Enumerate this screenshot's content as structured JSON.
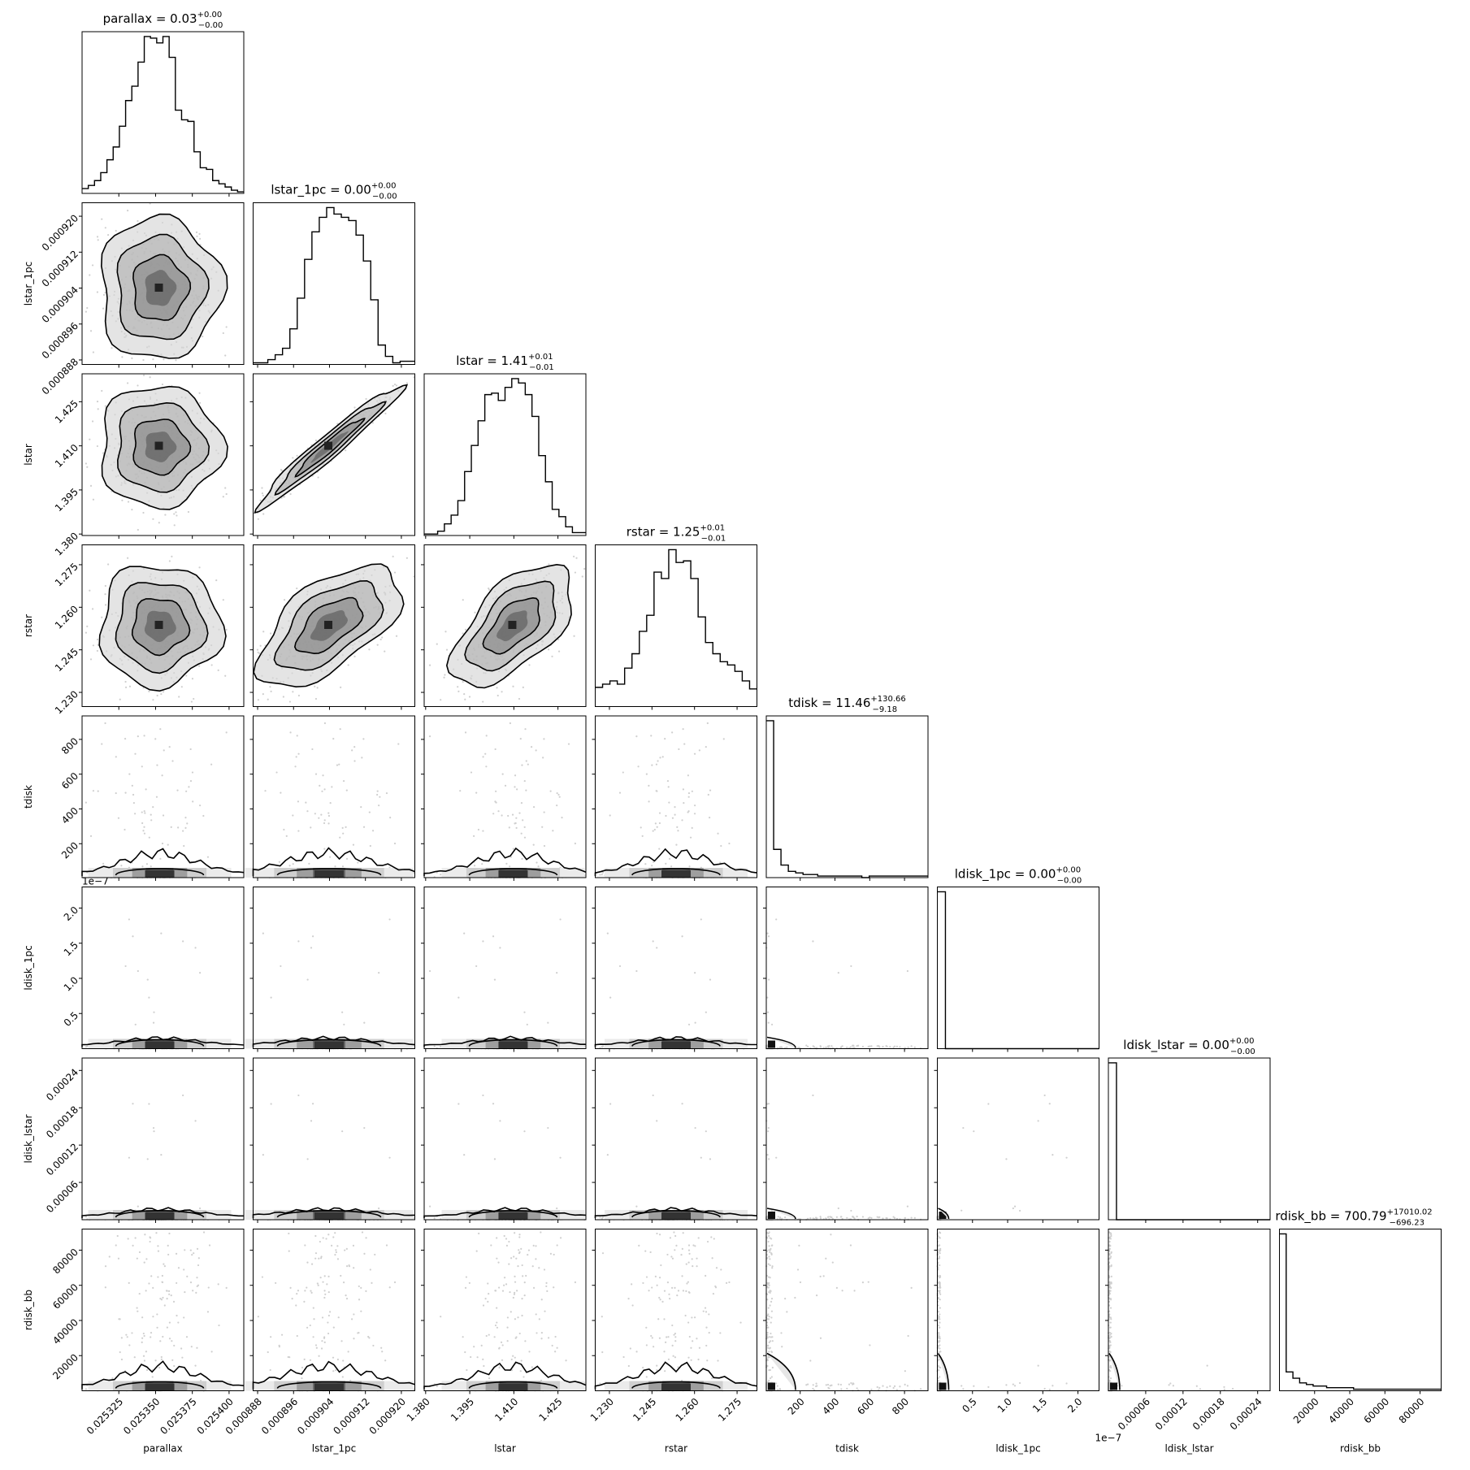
{
  "chart_data": {
    "type": "corner",
    "parameters": [
      "parallax",
      "lstar_1pc",
      "lstar",
      "rstar",
      "tdisk",
      "ldisk_1pc",
      "ldisk_lstar",
      "rdisk_bb"
    ],
    "xlabels": [
      "parallax",
      "lstar_1pc",
      "lstar",
      "rstar",
      "tdisk",
      "ldisk_1pc",
      "ldisk_lstar",
      "rdisk_bb"
    ],
    "ylabels": [
      "lstar_1pc",
      "lstar",
      "rstar",
      "tdisk",
      "ldisk_1pc",
      "ldisk_lstar",
      "rdisk_bb"
    ],
    "titles": [
      {
        "param": "parallax",
        "text": "parallax = 0.03",
        "sup": "+0.00",
        "sub": "−0.00"
      },
      {
        "param": "lstar_1pc",
        "text": "lstar_1pc = 0.00",
        "sup": "+0.00",
        "sub": "−0.00"
      },
      {
        "param": "lstar",
        "text": "lstar = 1.41",
        "sup": "+0.01",
        "sub": "−0.01"
      },
      {
        "param": "rstar",
        "text": "rstar = 1.25",
        "sup": "+0.01",
        "sub": "−0.01"
      },
      {
        "param": "tdisk",
        "text": "tdisk = 11.46",
        "sup": "+130.66",
        "sub": "−9.18"
      },
      {
        "param": "ldisk_1pc",
        "text": "ldisk_1pc = 0.00",
        "sup": "+0.00",
        "sub": "−0.00"
      },
      {
        "param": "ldisk_lstar",
        "text": "ldisk_lstar = 0.00",
        "sup": "+0.00",
        "sub": "−0.00"
      },
      {
        "param": "rdisk_bb",
        "text": "rdisk_bb = 700.79",
        "sup": "+17010.02",
        "sub": "−696.23"
      }
    ],
    "axes": {
      "parallax": {
        "range": [
          0.0253,
          0.02541
        ],
        "ticks": [
          "0.025325",
          "0.025350",
          "0.025375",
          "0.025400"
        ],
        "tick_values": [
          0.025325,
          0.02535,
          0.025375,
          0.0254
        ]
      },
      "lstar_1pc": {
        "range": [
          0.000887,
          0.000923
        ],
        "ticks": [
          "0.000888",
          "0.000896",
          "0.000904",
          "0.000912",
          "0.000920"
        ],
        "tick_values": [
          0.000888,
          0.000896,
          0.000904,
          0.000912,
          0.00092
        ]
      },
      "lstar": {
        "range": [
          1.3795,
          1.4345
        ],
        "ticks": [
          "1.380",
          "1.395",
          "1.410",
          "1.425"
        ],
        "tick_values": [
          1.38,
          1.395,
          1.41,
          1.425
        ]
      },
      "rstar": {
        "range": [
          1.225,
          1.282
        ],
        "ticks": [
          "1.230",
          "1.245",
          "1.260",
          "1.275"
        ],
        "tick_values": [
          1.23,
          1.245,
          1.26,
          1.275
        ]
      },
      "tdisk": {
        "range": [
          5,
          935
        ],
        "ticks": [
          "200",
          "400",
          "600",
          "800"
        ],
        "tick_values": [
          200,
          400,
          600,
          800
        ]
      },
      "ldisk_1pc": {
        "range": [
          0,
          2.3e-07
        ],
        "ticks": [
          "0.5",
          "1.0",
          "1.5",
          "2.0"
        ],
        "tick_values": [
          5e-08,
          1e-07,
          1.5e-07,
          2e-07
        ],
        "offset_text": "1e−7"
      },
      "ldisk_lstar": {
        "range": [
          0,
          0.00026
        ],
        "ticks": [
          "0.00006",
          "0.00012",
          "0.00018",
          "0.00024"
        ],
        "tick_values": [
          6e-05,
          0.00012,
          0.00018,
          0.00024
        ]
      },
      "rdisk_bb": {
        "range": [
          0,
          92000
        ],
        "ticks": [
          "20000",
          "40000",
          "60000",
          "80000"
        ],
        "tick_values": [
          20000,
          40000,
          60000,
          80000
        ]
      }
    },
    "histograms": [
      {
        "param": "parallax",
        "counts": [
          3,
          5,
          8,
          13,
          21,
          29,
          42,
          58,
          67,
          82,
          98,
          97,
          94,
          98,
          85,
          52,
          46,
          45,
          26,
          16,
          15,
          8,
          6,
          4,
          2,
          1
        ]
      },
      {
        "param": "lstar_1pc",
        "counts": [
          1,
          1,
          3,
          6,
          10,
          22,
          41,
          65,
          82,
          91,
          97,
          93,
          91,
          89,
          80,
          64,
          40,
          12,
          5,
          1,
          2,
          2
        ]
      },
      {
        "param": "lstar",
        "counts": [
          1,
          1,
          3,
          8,
          14,
          24,
          44,
          62,
          79,
          97,
          98,
          93,
          102,
          108,
          105,
          97,
          82,
          55,
          37,
          18,
          13,
          6,
          2,
          2
        ]
      },
      {
        "param": "rstar",
        "counts": [
          12,
          14,
          16,
          14,
          24,
          33,
          47,
          57,
          84,
          80,
          98,
          90,
          91,
          80,
          56,
          40,
          33,
          28,
          26,
          22,
          16,
          11
        ]
      },
      {
        "param": "tdisk",
        "counts": [
          100,
          18,
          8,
          4,
          3,
          2,
          2,
          1,
          1,
          1,
          1,
          1,
          1,
          0,
          1,
          1,
          1,
          1,
          1,
          1,
          1,
          1
        ]
      },
      {
        "param": "ldisk_1pc",
        "counts": [
          100,
          0,
          0,
          0,
          0,
          0,
          0,
          0,
          0,
          0,
          0,
          0,
          0,
          0,
          0,
          0,
          0,
          0,
          0,
          0
        ]
      },
      {
        "param": "ldisk_lstar",
        "counts": [
          100,
          0,
          0,
          0,
          0,
          0,
          0,
          0,
          0,
          0,
          0,
          0,
          0,
          0,
          0,
          0,
          0,
          0,
          0,
          0
        ]
      },
      {
        "param": "rdisk_bb",
        "counts": [
          100,
          12,
          8,
          5,
          4,
          3,
          3,
          2,
          2,
          2,
          2,
          1,
          1,
          1,
          1,
          1,
          1,
          1,
          1,
          1,
          1,
          1,
          1,
          1
        ]
      }
    ],
    "correlations": {
      "lstar_1pc|lstar": 0.97,
      "lstar_1pc|rstar": 0.6,
      "lstar|rstar": 0.6
    },
    "grid": false,
    "legend": "none",
    "colors": {
      "line": "#000000",
      "scatter": "#cfcfcf",
      "background": "#ffffff"
    }
  }
}
